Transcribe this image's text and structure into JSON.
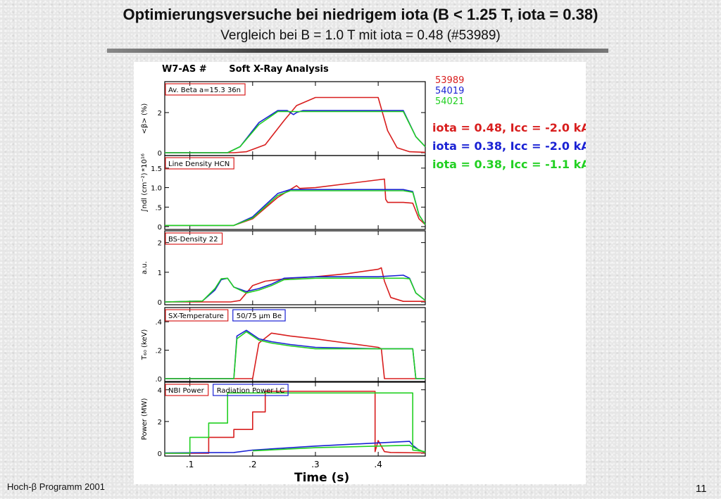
{
  "slide": {
    "title": "Optimierungsversuche bei niedrigem iota (B < 1.25 T, iota = 0.38)",
    "subtitle": "Vergleich bei B = 1.0 T mit iota = 0.48 (#53989)",
    "footer_left": "Hoch-β Programm 2001",
    "page_number": "11"
  },
  "colors": {
    "red": "#d81e1e",
    "blue": "#1a22d4",
    "green": "#22d022"
  },
  "chart_data": {
    "type": "line",
    "header": "W7-AS #       Soft X-Ray Analysis",
    "xlabel": "Time (s)",
    "xlim": [
      0.06,
      0.475
    ],
    "xticks": [
      ".1",
      ".2",
      ".3",
      ".4"
    ],
    "xtick_values": [
      0.1,
      0.2,
      0.3,
      0.4
    ],
    "legend_shots": [
      "53989",
      "54019",
      "54021"
    ],
    "legend_conditions": [
      "iota = 0.48, Icc = -2.0 kA",
      "iota = 0.38, Icc = -2.0 kA",
      "iota = 0.38, Icc = -1.1 kA"
    ],
    "panels": [
      {
        "label": "Av. Beta  a=15.3  36n",
        "extra_label": "",
        "ylabel": "<β> (%)",
        "yexp": "",
        "ylim": [
          0,
          3.4
        ],
        "yticks": [
          {
            "v": 0,
            "t": "0"
          },
          {
            "v": 2,
            "t": "2"
          }
        ],
        "series": [
          {
            "x": [
              0.06,
              0.17,
              0.19,
              0.22,
              0.25,
              0.27,
              0.3,
              0.4,
              0.415,
              0.43,
              0.45,
              0.475
            ],
            "y": [
              0,
              0,
              0.05,
              0.4,
              1.6,
              2.35,
              2.75,
              2.75,
              1.1,
              0.25,
              0.05,
              0.02
            ]
          },
          {
            "x": [
              0.06,
              0.16,
              0.18,
              0.21,
              0.24,
              0.255,
              0.26,
              0.265,
              0.27,
              0.28,
              0.42,
              0.44,
              0.46,
              0.475
            ],
            "y": [
              0,
              0,
              0.3,
              1.5,
              2.1,
              2.1,
              2.0,
              1.9,
              2.0,
              2.1,
              2.1,
              2.1,
              0.8,
              0.3
            ]
          },
          {
            "x": [
              0.06,
              0.16,
              0.18,
              0.21,
              0.24,
              0.28,
              0.42,
              0.44,
              0.46,
              0.475
            ],
            "y": [
              0,
              0,
              0.3,
              1.4,
              2.05,
              2.05,
              2.05,
              2.05,
              0.8,
              0.3
            ]
          }
        ]
      },
      {
        "label": "Line Density HCN",
        "extra_label": "",
        "ylabel": "∫ndl (cm⁻²)",
        "yexp": "*10¹⁶",
        "ylim": [
          0,
          1.75
        ],
        "yticks": [
          {
            "v": 0,
            "t": "0"
          },
          {
            "v": 0.5,
            "t": ".5"
          },
          {
            "v": 1.0,
            "t": "1.0"
          },
          {
            "v": 1.5,
            "t": "1.5"
          }
        ],
        "series": [
          {
            "x": [
              0.06,
              0.17,
              0.2,
              0.24,
              0.26,
              0.27,
              0.275,
              0.3,
              0.4,
              0.41,
              0.412,
              0.415,
              0.44,
              0.455,
              0.465,
              0.475
            ],
            "y": [
              0.03,
              0.03,
              0.2,
              0.75,
              0.95,
              1.05,
              0.98,
              1.0,
              1.2,
              1.22,
              0.7,
              0.62,
              0.62,
              0.6,
              0.2,
              0.05
            ]
          },
          {
            "x": [
              0.06,
              0.17,
              0.2,
              0.24,
              0.26,
              0.3,
              0.35,
              0.44,
              0.455,
              0.465,
              0.475
            ],
            "y": [
              0.03,
              0.03,
              0.25,
              0.85,
              0.95,
              0.95,
              0.95,
              0.95,
              0.9,
              0.3,
              0.05
            ]
          },
          {
            "x": [
              0.06,
              0.17,
              0.2,
              0.24,
              0.26,
              0.3,
              0.35,
              0.44,
              0.455,
              0.465,
              0.475
            ],
            "y": [
              0.03,
              0.03,
              0.22,
              0.8,
              0.92,
              0.92,
              0.92,
              0.92,
              0.88,
              0.3,
              0.05
            ]
          }
        ]
      },
      {
        "label": "BS-Density 22",
        "extra_label": "",
        "ylabel": "a.u.",
        "yexp": "",
        "ylim": [
          0,
          2.3
        ],
        "yticks": [
          {
            "v": 0,
            "t": "0"
          },
          {
            "v": 1,
            "t": "1"
          },
          {
            "v": 2,
            "t": "2"
          }
        ],
        "series": [
          {
            "x": [
              0.06,
              0.165,
              0.18,
              0.19,
              0.2,
              0.22,
              0.26,
              0.3,
              0.35,
              0.4,
              0.405,
              0.41,
              0.42,
              0.44,
              0.475
            ],
            "y": [
              0,
              0,
              0.05,
              0.3,
              0.55,
              0.7,
              0.8,
              0.85,
              0.95,
              1.1,
              1.15,
              0.7,
              0.15,
              0.02,
              0.02
            ]
          },
          {
            "x": [
              0.06,
              0.12,
              0.14,
              0.15,
              0.16,
              0.17,
              0.19,
              0.21,
              0.23,
              0.25,
              0.3,
              0.4,
              0.44,
              0.45,
              0.46,
              0.475
            ],
            "y": [
              0,
              0.03,
              0.4,
              0.75,
              0.8,
              0.5,
              0.35,
              0.45,
              0.6,
              0.8,
              0.85,
              0.85,
              0.9,
              0.8,
              0.3,
              0.05
            ]
          },
          {
            "x": [
              0.06,
              0.12,
              0.14,
              0.15,
              0.16,
              0.17,
              0.19,
              0.21,
              0.23,
              0.25,
              0.3,
              0.4,
              0.44,
              0.45,
              0.46,
              0.475
            ],
            "y": [
              0,
              0.03,
              0.45,
              0.78,
              0.8,
              0.5,
              0.3,
              0.4,
              0.55,
              0.75,
              0.8,
              0.8,
              0.8,
              0.78,
              0.3,
              0.05
            ]
          }
        ]
      },
      {
        "label": "SX-Temperature",
        "extra_label": "50/75  μm Be",
        "ylabel": "T₆₀ (keV)",
        "yexp": "",
        "ylim": [
          0,
          0.48
        ],
        "yticks": [
          {
            "v": 0,
            "t": ".0"
          },
          {
            "v": 0.2,
            "t": ".2"
          },
          {
            "v": 0.4,
            "t": ".4"
          }
        ],
        "series": [
          {
            "x": [
              0.06,
              0.2,
              0.21,
              0.23,
              0.26,
              0.3,
              0.35,
              0.4,
              0.405,
              0.41,
              0.475
            ],
            "y": [
              0,
              0,
              0.25,
              0.32,
              0.3,
              0.28,
              0.25,
              0.22,
              0.21,
              0,
              0
            ]
          },
          {
            "x": [
              0.06,
              0.17,
              0.175,
              0.19,
              0.21,
              0.23,
              0.26,
              0.3,
              0.4,
              0.455,
              0.46,
              0.475
            ],
            "y": [
              0,
              0,
              0.3,
              0.34,
              0.28,
              0.26,
              0.24,
              0.22,
              0.21,
              0.21,
              0,
              0
            ]
          },
          {
            "x": [
              0.06,
              0.17,
              0.175,
              0.19,
              0.21,
              0.23,
              0.26,
              0.3,
              0.4,
              0.455,
              0.46,
              0.475
            ],
            "y": [
              0,
              0,
              0.28,
              0.33,
              0.27,
              0.25,
              0.23,
              0.21,
              0.21,
              0.21,
              0,
              0
            ]
          }
        ]
      },
      {
        "label": "NBI Power",
        "extra_label": "Radiation Power LC",
        "ylabel": "Power (MW)",
        "yexp": "",
        "ylim": [
          0,
          4.3
        ],
        "yticks": [
          {
            "v": 0,
            "t": "0"
          },
          {
            "v": 2,
            "t": "2"
          },
          {
            "v": 4,
            "t": "4"
          }
        ],
        "series": [
          {
            "x": [
              0.06,
              0.13,
              0.13,
              0.17,
              0.17,
              0.2,
              0.2,
              0.22,
              0.22,
              0.395,
              0.395,
              0.4,
              0.41,
              0.42,
              0.475
            ],
            "y": [
              0,
              0,
              1.0,
              1.0,
              1.5,
              1.5,
              2.6,
              2.6,
              3.9,
              3.9,
              0.1,
              0.8,
              0.1,
              0.05,
              0.02
            ]
          },
          {
            "x": [
              0.06,
              0.17,
              0.2,
              0.3,
              0.4,
              0.45,
              0.455,
              0.465,
              0.475
            ],
            "y": [
              0.02,
              0.05,
              0.2,
              0.45,
              0.65,
              0.75,
              0.5,
              0.2,
              0.05
            ]
          },
          {
            "x": [
              0.06,
              0.1,
              0.1,
              0.13,
              0.13,
              0.16,
              0.16,
              0.455,
              0.455,
              0.475,
              0.06,
              0.2,
              0.3,
              0.4,
              0.45,
              0.46,
              0.475
            ],
            "y": [
              0,
              0,
              1.0,
              1.0,
              1.9,
              1.9,
              3.8,
              3.8,
              0.2,
              0.1,
              null,
              0.15,
              0.35,
              0.45,
              0.5,
              0.3,
              0.05
            ]
          }
        ]
      }
    ]
  }
}
